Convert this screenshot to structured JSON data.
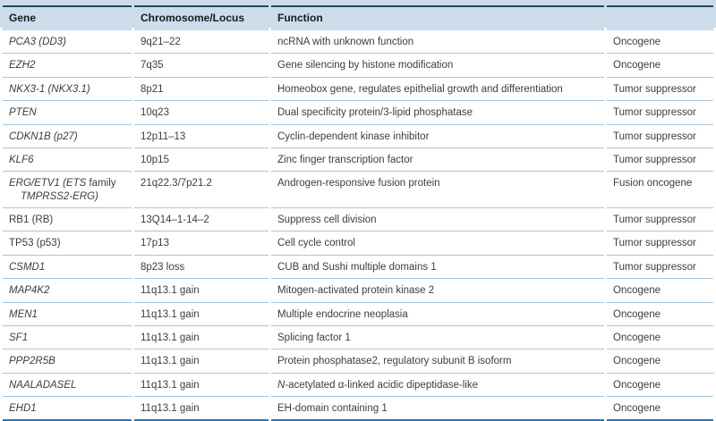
{
  "colors": {
    "header_bg": "#ccdcea",
    "top_rule": "#1d4a60",
    "row_rule": "#a8c6de",
    "bottom_rule": "#2f76b4",
    "text": "#3d3d3d",
    "header_text": "#1a1a1a"
  },
  "table": {
    "columns": [
      "Gene",
      "Chromosome/Locus",
      "Function",
      ""
    ],
    "rows": [
      {
        "gene": [
          {
            "text": "PCA3 (DD3)",
            "italic": true
          }
        ],
        "locus": "9q21–22",
        "function": [
          {
            "text": "ncRNA with unknown function",
            "italic": false
          }
        ],
        "classification": "Oncogene"
      },
      {
        "gene": [
          {
            "text": "EZH2",
            "italic": true
          }
        ],
        "locus": "7q35",
        "function": [
          {
            "text": "Gene silencing by histone modification",
            "italic": false
          }
        ],
        "classification": "Oncogene"
      },
      {
        "gene": [
          {
            "text": "NKX3-1 (NKX3.1)",
            "italic": true
          }
        ],
        "locus": "8p21",
        "function": [
          {
            "text": "Homeobox gene, regulates epithelial growth and differentiation",
            "italic": false
          }
        ],
        "classification": "Tumor suppressor"
      },
      {
        "gene": [
          {
            "text": "PTEN",
            "italic": true
          }
        ],
        "locus": "10q23",
        "function": [
          {
            "text": "Dual specificity protein/3-lipid phosphatase",
            "italic": false
          }
        ],
        "classification": "Tumor suppressor"
      },
      {
        "gene": [
          {
            "text": "CDKN1B (p27)",
            "italic": true
          }
        ],
        "locus": "12p11–13",
        "function": [
          {
            "text": "Cyclin-dependent kinase inhibitor",
            "italic": false
          }
        ],
        "classification": "Tumor suppressor"
      },
      {
        "gene": [
          {
            "text": "KLF6",
            "italic": true
          }
        ],
        "locus": "10p15",
        "function": [
          {
            "text": "Zinc finger transcription factor",
            "italic": false
          }
        ],
        "classification": "Tumor suppressor"
      },
      {
        "gene": [
          {
            "text": "ERG/ETV1 (ETS",
            "italic": true
          },
          {
            "text": " family ",
            "italic": false
          },
          {
            "text": "TMPRSS2-ERG)",
            "italic": true
          }
        ],
        "locus": "21q22.3/7p21.2",
        "function": [
          {
            "text": "Androgen-responsive fusion protein",
            "italic": false
          }
        ],
        "classification": "Fusion oncogene"
      },
      {
        "gene": [
          {
            "text": "RB1 (RB)",
            "italic": false
          }
        ],
        "locus": "13Q14–1-14–2",
        "function": [
          {
            "text": "Suppress cell division",
            "italic": false
          }
        ],
        "classification": "Tumor suppressor"
      },
      {
        "gene": [
          {
            "text": "TP53 (p53)",
            "italic": false
          }
        ],
        "locus": "17p13",
        "function": [
          {
            "text": "Cell cycle control",
            "italic": false
          }
        ],
        "classification": "Tumor suppressor"
      },
      {
        "gene": [
          {
            "text": "CSMD1",
            "italic": true
          }
        ],
        "locus": "8p23 loss",
        "function": [
          {
            "text": "CUB and Sushi multiple domains 1",
            "italic": false
          }
        ],
        "classification": "Tumor suppressor"
      },
      {
        "gene": [
          {
            "text": "MAP4K2",
            "italic": true
          }
        ],
        "locus": "11q13.1 gain",
        "function": [
          {
            "text": "Mitogen-activated protein kinase 2",
            "italic": false
          }
        ],
        "classification": "Oncogene"
      },
      {
        "gene": [
          {
            "text": "MEN1",
            "italic": true
          }
        ],
        "locus": "11q13.1 gain",
        "function": [
          {
            "text": "Multiple endocrine neoplasia",
            "italic": false
          }
        ],
        "classification": "Oncogene"
      },
      {
        "gene": [
          {
            "text": "SF1",
            "italic": true
          }
        ],
        "locus": "11q13.1 gain",
        "function": [
          {
            "text": "Splicing factor 1",
            "italic": false
          }
        ],
        "classification": "Oncogene"
      },
      {
        "gene": [
          {
            "text": "PPP2R5B",
            "italic": true
          }
        ],
        "locus": "11q13.1 gain",
        "function": [
          {
            "text": "Protein phosphatase2, regulatory subunit B isoform",
            "italic": false
          }
        ],
        "classification": "Oncogene"
      },
      {
        "gene": [
          {
            "text": "NAALADASEL",
            "italic": true
          }
        ],
        "locus": "11q13.1 gain",
        "function": [
          {
            "text": "N",
            "italic": true
          },
          {
            "text": "-acetylated α-linked acidic dipeptidase-like",
            "italic": false
          }
        ],
        "classification": "Oncogene"
      },
      {
        "gene": [
          {
            "text": "EHD1",
            "italic": true
          }
        ],
        "locus": "11q13.1 gain",
        "function": [
          {
            "text": "EH-domain containing 1",
            "italic": false
          }
        ],
        "classification": "Oncogene"
      }
    ]
  }
}
